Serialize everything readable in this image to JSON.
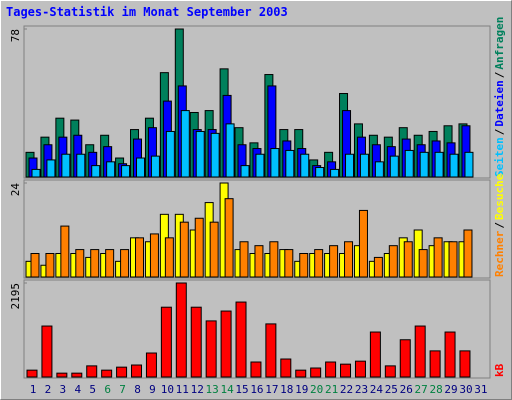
{
  "chart_data": [
    {
      "type": "bar",
      "title": "Tages-Statistik im Monat September 2003",
      "categories": [
        "1",
        "2",
        "3",
        "4",
        "5",
        "6",
        "7",
        "8",
        "9",
        "10",
        "11",
        "12",
        "13",
        "14",
        "15",
        "16",
        "17",
        "18",
        "19",
        "20",
        "21",
        "22",
        "23",
        "24",
        "25",
        "26",
        "27",
        "28",
        "29",
        "30",
        "31"
      ],
      "category_colors": [
        "#000080",
        "#000080",
        "#000080",
        "#000080",
        "#000080",
        "#008040",
        "#008040",
        "#000080",
        "#000080",
        "#000080",
        "#000080",
        "#000080",
        "#008040",
        "#008040",
        "#000080",
        "#000080",
        "#000080",
        "#000080",
        "#000080",
        "#008040",
        "#008040",
        "#000080",
        "#000080",
        "#000080",
        "#000080",
        "#000080",
        "#008040",
        "#008040",
        "#000080",
        "#000080",
        "#000080"
      ],
      "ylim": [
        0,
        78
      ],
      "yticks": [
        78
      ],
      "legend_separator": "/",
      "series": [
        {
          "name": "Anfragen",
          "color": "#00805c",
          "values": [
            13,
            21,
            31,
            30,
            17,
            22,
            10,
            25,
            31,
            55,
            78,
            34,
            35,
            57,
            26,
            18,
            54,
            25,
            25,
            9,
            13,
            44,
            28,
            22,
            21,
            26,
            22,
            24,
            27,
            28,
            null
          ]
        },
        {
          "name": "Dateien",
          "color": "#0000ff",
          "values": [
            10,
            17,
            21,
            22,
            13,
            16,
            7,
            20,
            26,
            40,
            48,
            25,
            25,
            43,
            17,
            15,
            48,
            19,
            15,
            6,
            8,
            35,
            21,
            17,
            16,
            20,
            17,
            19,
            18,
            27,
            null
          ]
        },
        {
          "name": "Seiten",
          "color": "#00c0ff",
          "values": [
            4,
            9,
            12,
            12,
            6,
            8,
            6,
            10,
            11,
            24,
            35,
            24,
            23,
            28,
            6,
            12,
            15,
            14,
            12,
            5,
            4,
            12,
            12,
            8,
            11,
            14,
            13,
            13,
            12,
            13,
            null
          ]
        }
      ]
    },
    {
      "type": "bar",
      "ylim": [
        0,
        24
      ],
      "yticks": [
        24
      ],
      "legend_separator": "/",
      "series": [
        {
          "name": "Besuche",
          "color": "#ffff00",
          "values": [
            4,
            3,
            6,
            6,
            5,
            6,
            4,
            10,
            9,
            16,
            16,
            12,
            19,
            24,
            7,
            6,
            6,
            7,
            4,
            6,
            6,
            6,
            8,
            4,
            6,
            10,
            12,
            8,
            9,
            9,
            null
          ]
        },
        {
          "name": "Rechner",
          "color": "#ff8000",
          "values": [
            6,
            6,
            13,
            7,
            7,
            7,
            7,
            10,
            11,
            10,
            14,
            15,
            14,
            20,
            9,
            8,
            9,
            7,
            6,
            7,
            8,
            9,
            17,
            5,
            8,
            9,
            7,
            10,
            9,
            12,
            null
          ]
        }
      ]
    },
    {
      "type": "bar",
      "ylim": [
        0,
        2195
      ],
      "yticks": [
        2195
      ],
      "series": [
        {
          "name": "kB",
          "color": "#ff0000",
          "values": [
            160,
            1190,
            90,
            90,
            260,
            160,
            230,
            280,
            560,
            1630,
            2195,
            1630,
            1310,
            1540,
            1750,
            350,
            1240,
            420,
            160,
            210,
            350,
            300,
            370,
            1050,
            260,
            870,
            1190,
            610,
            1050,
            610,
            null
          ]
        }
      ]
    }
  ]
}
